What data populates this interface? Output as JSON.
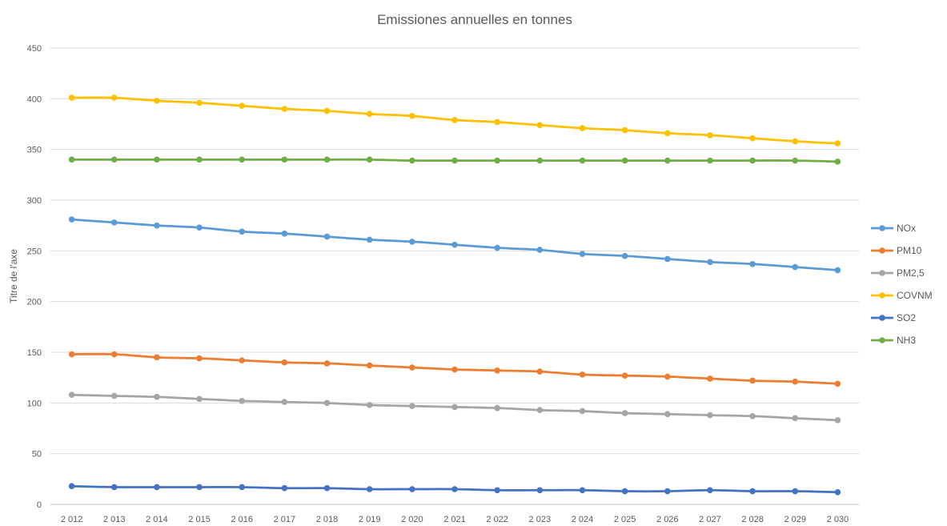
{
  "chart_data": {
    "type": "line",
    "title": "Emissiones annuelles en tonnes",
    "xlabel": "",
    "ylabel": "Titre de l'axe",
    "ylim": [
      0,
      450
    ],
    "yticks": [
      0,
      50,
      100,
      150,
      200,
      250,
      300,
      350,
      400,
      450
    ],
    "grid": true,
    "legend_position": "right",
    "categories": [
      "2 012",
      "2 013",
      "2 014",
      "2 015",
      "2 016",
      "2 017",
      "2 018",
      "2 019",
      "2 020",
      "2 021",
      "2 022",
      "2 023",
      "2 024",
      "2 025",
      "2 026",
      "2 027",
      "2 028",
      "2 029",
      "2 030"
    ],
    "series": [
      {
        "name": "NOx",
        "color": "#5B9BD5",
        "values": [
          281,
          278,
          275,
          273,
          269,
          267,
          264,
          261,
          259,
          256,
          253,
          251,
          247,
          245,
          242,
          239,
          237,
          234,
          231
        ]
      },
      {
        "name": "PM10",
        "color": "#ED7D31",
        "values": [
          148,
          148,
          145,
          144,
          142,
          140,
          139,
          137,
          135,
          133,
          132,
          131,
          128,
          127,
          126,
          124,
          122,
          121,
          119
        ]
      },
      {
        "name": "PM2,5",
        "color": "#A5A5A5",
        "values": [
          108,
          107,
          106,
          104,
          102,
          101,
          100,
          98,
          97,
          96,
          95,
          93,
          92,
          90,
          89,
          88,
          87,
          85,
          83
        ]
      },
      {
        "name": "COVNM",
        "color": "#FFC000",
        "values": [
          401,
          401,
          398,
          396,
          393,
          390,
          388,
          385,
          383,
          379,
          377,
          374,
          371,
          369,
          366,
          364,
          361,
          358,
          356
        ]
      },
      {
        "name": "SO2",
        "color": "#4472C4",
        "values": [
          18,
          17,
          17,
          17,
          17,
          16,
          16,
          15,
          15,
          15,
          14,
          14,
          14,
          13,
          13,
          14,
          13,
          13,
          12
        ]
      },
      {
        "name": "NH3",
        "color": "#70AD47",
        "values": [
          340,
          340,
          340,
          340,
          340,
          340,
          340,
          340,
          339,
          339,
          339,
          339,
          339,
          339,
          339,
          339,
          339,
          339,
          338
        ]
      }
    ]
  }
}
